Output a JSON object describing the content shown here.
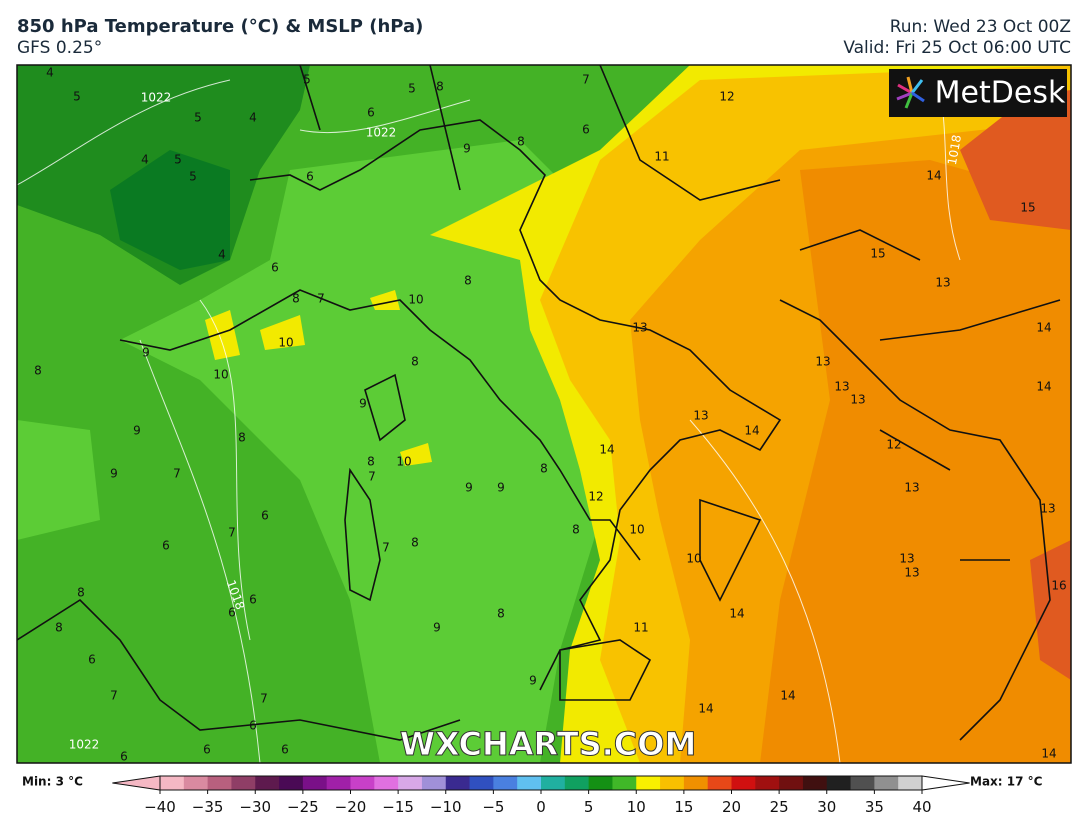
{
  "header": {
    "title": "850 hPa Temperature (°C) & MSLP (hPa)",
    "model": "GFS 0.25°",
    "run": "Run: Wed 23 Oct 00Z",
    "valid": "Valid: Fri 25 Oct 06:00 UTC"
  },
  "logo": "MetDesk",
  "watermark": "WXCHARTS.COM",
  "map": {
    "contour_labels": [
      4,
      5,
      1022,
      5,
      4,
      5,
      4,
      5,
      5,
      4,
      6,
      6,
      6,
      1022,
      5,
      8,
      9,
      8,
      6,
      7,
      12,
      11,
      14,
      15,
      15,
      13,
      14,
      14,
      13,
      13,
      13,
      13,
      13,
      12,
      13,
      13,
      14,
      12,
      10,
      10,
      13,
      13,
      14,
      16,
      14,
      11,
      14,
      14,
      14,
      8,
      10,
      7,
      8,
      10,
      10,
      9,
      8,
      8,
      9,
      8,
      9,
      7,
      9,
      8,
      10,
      7,
      9,
      9,
      8,
      6,
      7,
      6,
      8,
      8,
      8,
      8,
      6,
      6,
      9,
      8,
      6,
      7,
      7,
      6,
      9,
      1022,
      6,
      6,
      6,
      1018,
      1018,
      7
    ]
  },
  "colorbar": {
    "min_label": "Min: 3 °C",
    "max_label": "Max: 17 °C",
    "lim": [
      -45,
      45
    ],
    "ticks": [
      {
        "value": -40,
        "label": "−40"
      },
      {
        "value": -35,
        "label": "−35"
      },
      {
        "value": -30,
        "label": "−30"
      },
      {
        "value": -25,
        "label": "−25"
      },
      {
        "value": -20,
        "label": "−20"
      },
      {
        "value": -15,
        "label": "−15"
      },
      {
        "value": -10,
        "label": "−10"
      },
      {
        "value": -5,
        "label": "−5"
      },
      0,
      5,
      10,
      15,
      20,
      25,
      30,
      35,
      40
    ],
    "colors": [
      "#f5b8c4",
      "#d98aa0",
      "#b8607e",
      "#8f3e66",
      "#5e1a4e",
      "#4a0a55",
      "#7a1088",
      "#a020a8",
      "#c840c8",
      "#e070e0",
      "#d8a8e8",
      "#a090d8",
      "#3a2a90",
      "#3050c0",
      "#4a80e0",
      "#60c0f0",
      "#20b0a0",
      "#10a060",
      "#149014",
      "#40b828",
      "#f8f000",
      "#f8c000",
      "#f09000",
      "#e84818",
      "#d01010",
      "#a01010",
      "#701010",
      "#401010",
      "#202020",
      "#505050",
      "#909090",
      "#d0d0d0"
    ]
  }
}
